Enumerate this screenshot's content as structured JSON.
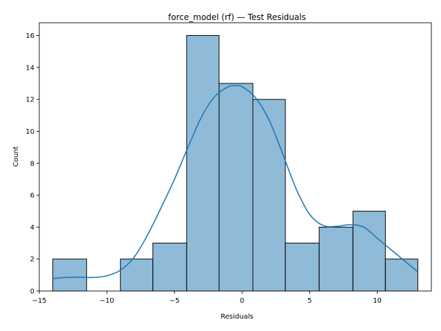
{
  "chart_data": {
    "type": "bar",
    "title": "force_model (rf) — Test Residuals",
    "xlabel": "Residuals",
    "ylabel": "Count",
    "xlim": [
      -15,
      14
    ],
    "ylim": [
      0,
      16.8
    ],
    "xticks": [
      -15,
      -10,
      -5,
      0,
      5,
      10
    ],
    "xtick_labels": [
      "−15",
      "−10",
      "−5",
      "0",
      "5",
      "10"
    ],
    "yticks": [
      0,
      2,
      4,
      6,
      8,
      10,
      12,
      14,
      16
    ],
    "grid": false,
    "bar_color": "#1f77b4",
    "bar_alpha": 0.5,
    "edge_color": "#000000",
    "bin_edges": [
      -14.0,
      -11.5,
      -9.0,
      -6.6,
      -4.1,
      -1.7,
      0.8,
      3.2,
      5.7,
      8.2,
      10.6,
      13.0
    ],
    "values": [
      2,
      0,
      2,
      3,
      16,
      13,
      12,
      3,
      4,
      5,
      2
    ],
    "kde": {
      "color": "#1f77b4",
      "x": [
        -14,
        -13,
        -12,
        -11,
        -10,
        -9,
        -8,
        -7,
        -6,
        -5,
        -4,
        -3,
        -2,
        -1,
        -0.5,
        0,
        1,
        2,
        3,
        4,
        5,
        6,
        7,
        8,
        9,
        10,
        11,
        12,
        13
      ],
      "y": [
        0.78,
        0.85,
        0.86,
        0.85,
        0.95,
        1.3,
        2.1,
        3.5,
        5.2,
        7.0,
        9.0,
        10.9,
        12.2,
        12.8,
        12.85,
        12.8,
        12.1,
        10.7,
        8.6,
        6.4,
        4.8,
        4.1,
        4.05,
        4.15,
        4.0,
        3.3,
        2.6,
        1.9,
        1.2
      ]
    }
  }
}
